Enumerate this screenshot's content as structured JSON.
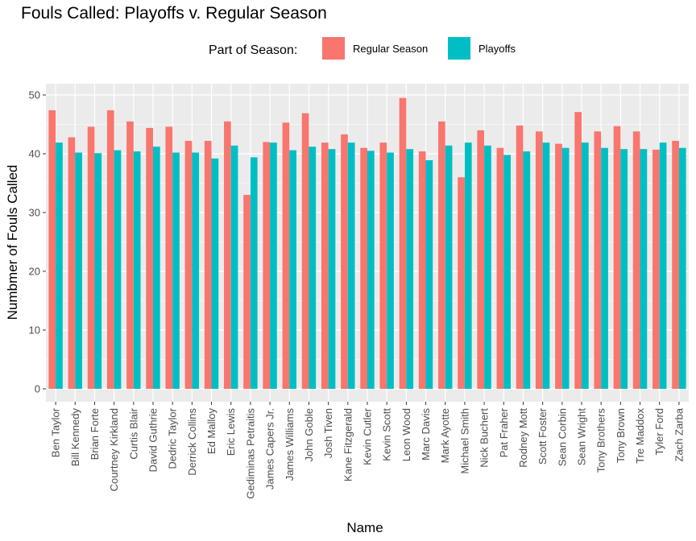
{
  "chart_data": {
    "type": "bar",
    "title": "Fouls Called: Playoffs v. Regular Season",
    "xlabel": "Name",
    "ylabel": "Numbmer of Fouls Called",
    "ylim": [
      0,
      52
    ],
    "yticks": [
      0,
      10,
      20,
      30,
      40,
      50
    ],
    "grid": true,
    "legend": {
      "title": "Part of Season:",
      "position": "top"
    },
    "categories": [
      "Ben Taylor",
      "Bill Kennedy",
      "Brian Forte",
      "Courtney Kirkland",
      "Curtis Blair",
      "David Guthrie",
      "Dedric Taylor",
      "Derrick Collins",
      "Ed Malloy",
      "Eric Lewis",
      "Gediminas Petraitis",
      "James Capers Jr.",
      "James Williams",
      "John Goble",
      "Josh Tiven",
      "Kane Fitzgerald",
      "Kevin Cutler",
      "Kevin Scott",
      "Leon Wood",
      "Marc Davis",
      "Mark Ayotte",
      "Michael Smith",
      "Nick Buchert",
      "Pat Fraher",
      "Rodney Mott",
      "Scott Foster",
      "Sean Corbin",
      "Sean Wright",
      "Tony Brothers",
      "Tony Brown",
      "Tre Maddox",
      "Tyler Ford",
      "Zach Zarba"
    ],
    "series": [
      {
        "name": "Regular Season",
        "color": "#F8766D",
        "values": [
          47.4,
          42.8,
          44.6,
          47.4,
          45.5,
          44.4,
          44.6,
          42.2,
          42.2,
          45.5,
          33.0,
          42.0,
          45.3,
          46.9,
          41.9,
          43.3,
          41.0,
          41.9,
          49.5,
          40.4,
          45.5,
          36.0,
          44.0,
          41.0,
          44.8,
          43.8,
          41.7,
          47.1,
          43.8,
          44.7,
          43.8,
          40.7,
          42.2
        ]
      },
      {
        "name": "Playoffs",
        "color": "#00BFC4",
        "values": [
          41.9,
          40.2,
          40.1,
          40.6,
          40.4,
          41.2,
          40.2,
          40.2,
          39.2,
          41.4,
          39.4,
          41.9,
          40.6,
          41.2,
          40.8,
          41.9,
          40.5,
          40.2,
          40.8,
          38.9,
          41.4,
          41.9,
          41.4,
          39.8,
          40.4,
          41.9,
          41.0,
          41.9,
          41.0,
          40.8,
          40.8,
          41.9,
          41.0
        ]
      }
    ]
  }
}
